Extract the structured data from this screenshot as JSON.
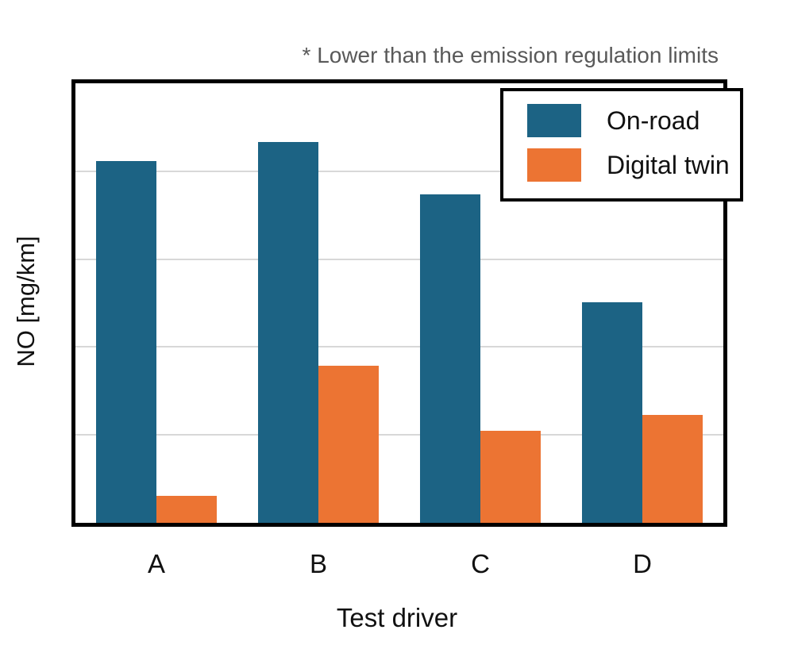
{
  "annotation": "* Lower than the emission regulation limits",
  "legend": {
    "items": [
      {
        "label": "On-road",
        "color": "#1c6384"
      },
      {
        "label": "Digital twin",
        "color": "#ec7433"
      }
    ]
  },
  "chart_data": {
    "type": "bar",
    "categories": [
      "A",
      "B",
      "C",
      "D"
    ],
    "series": [
      {
        "name": "On-road",
        "color": "#1c6384",
        "values": [
          4.12,
          4.33,
          3.74,
          2.51
        ]
      },
      {
        "name": "Digital twin",
        "color": "#ec7433",
        "values": [
          0.31,
          1.79,
          1.05,
          1.23
        ]
      }
    ],
    "title": "",
    "xlabel": "Test driver",
    "ylabel": "NO [mg/km]",
    "annotation": "* Lower than the emission regulation limits",
    "ylim": [
      0,
      5
    ],
    "gridline_values": [
      1,
      2,
      3,
      4
    ],
    "y_axis_tick_labels": [],
    "legend_position": "top-right",
    "grid": true
  },
  "colors": {
    "gridline": "#d8d8d8",
    "frame": "#000000",
    "annotation_text": "#595959"
  }
}
